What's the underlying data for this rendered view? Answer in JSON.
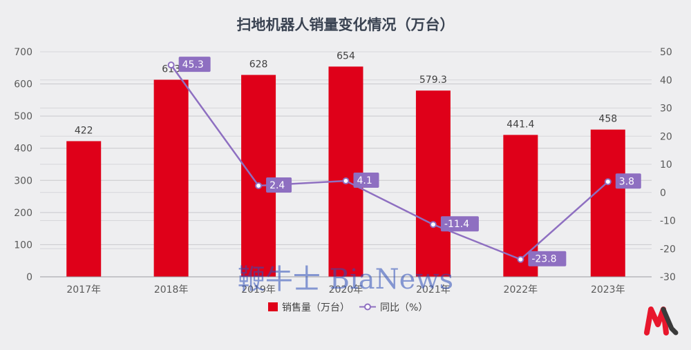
{
  "chart_data": {
    "type": "bar",
    "title": "扫地机器人销量变化情况（万台）",
    "categories": [
      "2017年",
      "2018年",
      "2019年",
      "2020年",
      "2021年",
      "2022年",
      "2023年"
    ],
    "series": [
      {
        "name": "销售量（万台）",
        "type": "bar",
        "axis": "left",
        "color": "#df0019",
        "values": [
          422,
          613,
          628,
          654,
          579.3,
          441.4,
          458
        ],
        "labels": [
          "422",
          "613",
          "628",
          "654",
          "579.3",
          "441.4",
          "458"
        ]
      },
      {
        "name": "同比（%）",
        "type": "line",
        "axis": "right",
        "color": "#8e6fc1",
        "values": [
          null,
          45.3,
          2.4,
          4.1,
          -11.4,
          -23.8,
          3.8
        ],
        "labels": [
          "",
          "45.3",
          "2.4",
          "4.1",
          "-11.4",
          "-23.8",
          "3.8"
        ]
      }
    ],
    "ylim": [
      0,
      700
    ],
    "y_ticks": [
      "0",
      "100",
      "200",
      "300",
      "400",
      "500",
      "600",
      "700"
    ],
    "y2lim": [
      -30,
      50
    ],
    "y2_ticks": [
      "-30",
      "-20",
      "-10",
      "0",
      "10",
      "20",
      "30",
      "40",
      "50"
    ],
    "grid": true,
    "legend": "bottom"
  },
  "watermark": "鞭牛士 BiaNews",
  "logo_icon": "m-logo-icon"
}
